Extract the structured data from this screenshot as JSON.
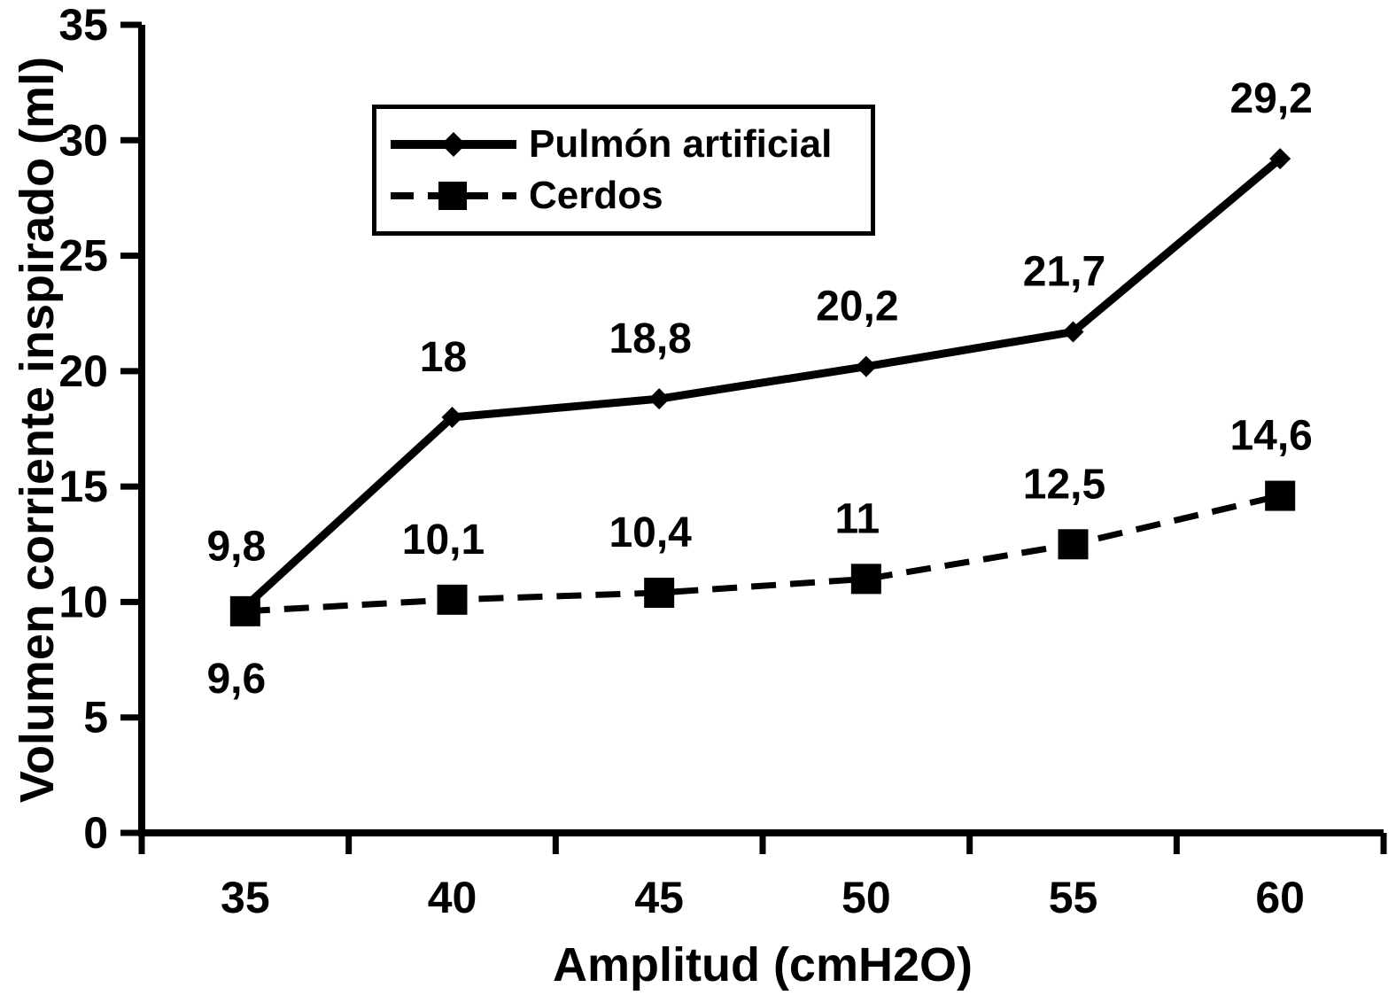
{
  "chart_data": {
    "type": "line",
    "title": "",
    "xlabel": "Amplitud (cmH2O)",
    "ylabel": "Volumen corriente inspirado (ml)",
    "categories": [
      35,
      40,
      45,
      50,
      55,
      60
    ],
    "x_ticks": [
      "35",
      "40",
      "45",
      "50",
      "55",
      "60"
    ],
    "y_ticks": [
      "0",
      "5",
      "10",
      "15",
      "20",
      "25",
      "30",
      "35"
    ],
    "ylim": [
      0,
      35
    ],
    "ytick_step": 5,
    "grid": false,
    "legend_position": "top-left-inside",
    "colors": {
      "line": "#000000",
      "background": "#ffffff"
    },
    "series": [
      {
        "name": "Pulmón artificial",
        "values": [
          9.8,
          18,
          18.8,
          20.2,
          21.7,
          29.2
        ],
        "point_labels": [
          "9,8",
          "18",
          "18,8",
          "20,2",
          "21,7",
          "29,2"
        ],
        "label_positions": [
          "above",
          "above",
          "above",
          "above",
          "above",
          "above"
        ],
        "line": "solid",
        "marker": "diamond",
        "color": "#000000"
      },
      {
        "name": "Cerdos",
        "values": [
          9.6,
          10.1,
          10.4,
          11,
          12.5,
          14.6
        ],
        "point_labels": [
          "9,6",
          "10,1",
          "10,4",
          "11",
          "12,5",
          "14,6"
        ],
        "label_positions": [
          "below",
          "above",
          "above",
          "above",
          "above",
          "above"
        ],
        "line": "dashed",
        "marker": "square",
        "color": "#000000"
      }
    ]
  }
}
